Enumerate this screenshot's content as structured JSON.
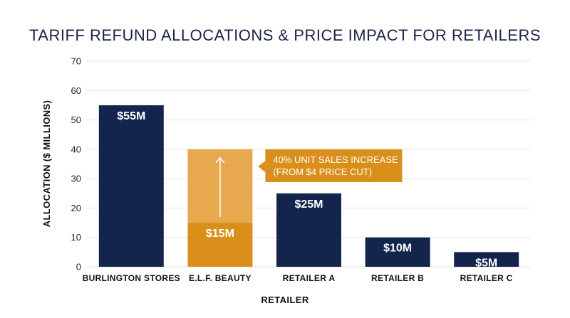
{
  "chart_data": {
    "type": "bar",
    "title": "TARIFF REFUND ALLOCATIONS & PRICE IMPACT FOR RETAILERS",
    "xlabel": "RETAILER",
    "ylabel": "ALLOCATION ($ MILLIONS)",
    "ylim": [
      0,
      70
    ],
    "yticks": [
      0,
      10,
      20,
      30,
      40,
      50,
      60,
      70
    ],
    "grid": true,
    "categories": [
      "BURLINGTON STORES",
      "E.L.F. BEAUTY",
      "RETAILER A",
      "RETAILER B",
      "RETAILER C"
    ],
    "values": [
      55,
      15,
      25,
      10,
      5
    ],
    "data_labels": [
      "$55M",
      "$15M",
      "$25M",
      "$10M",
      "$5M"
    ],
    "highlight": {
      "category": "E.L.F. BEAUTY",
      "projected_value": 40,
      "annotation_lines": [
        "40% UNIT SALES INCREASE",
        "(FROM $4 PRICE CUT)"
      ]
    },
    "colors": {
      "bar": "#13244d",
      "highlight_bar": "#d98f1a",
      "projected_bar": "#e8a94e",
      "callout": "#d98f1a"
    }
  }
}
